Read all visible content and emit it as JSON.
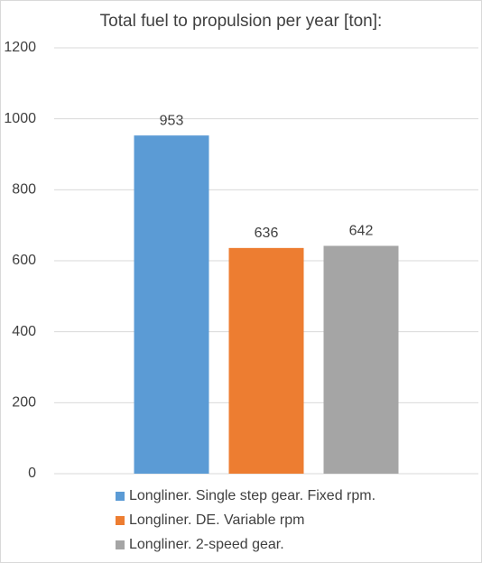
{
  "chart_data": {
    "type": "bar",
    "title": "Total fuel to propulsion per year [ton]:",
    "categories": [
      null
    ],
    "series": [
      {
        "name": "Longliner. Single step gear. Fixed rpm.",
        "color": "#5b9bd5",
        "values": [
          953
        ]
      },
      {
        "name": "Longliner. DE. Variable rpm",
        "color": "#ed7d31",
        "values": [
          636
        ]
      },
      {
        "name": "Longliner. 2-speed gear.",
        "color": "#a5a5a5",
        "values": [
          642
        ]
      }
    ],
    "ylim": [
      0,
      1200
    ],
    "yticks": [
      0,
      200,
      400,
      600,
      800,
      1000,
      1200
    ],
    "grid": true,
    "legend": "bottom"
  }
}
